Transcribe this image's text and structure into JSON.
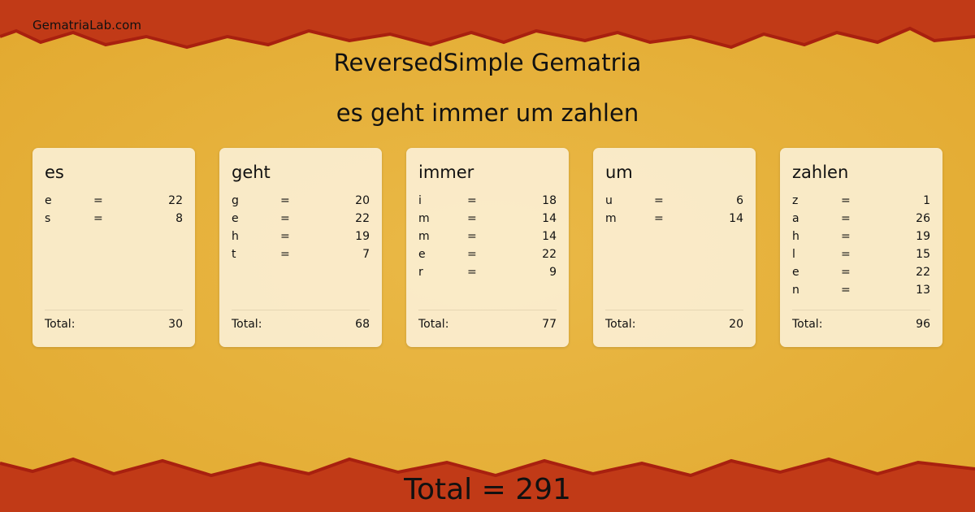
{
  "site": "GematriaLab.com",
  "title": "ReversedSimple Gematria",
  "phrase": "es geht immer um zahlen",
  "total_label": "Total:",
  "grand_total": "Total = 291",
  "colors": {
    "background": "#e7b23a",
    "border": "#c13a17",
    "card": "#fbefd2"
  },
  "words": [
    {
      "word": "es",
      "letters": [
        [
          "e",
          "=",
          "22"
        ],
        [
          "s",
          "=",
          "8"
        ]
      ],
      "total": "30"
    },
    {
      "word": "geht",
      "letters": [
        [
          "g",
          "=",
          "20"
        ],
        [
          "e",
          "=",
          "22"
        ],
        [
          "h",
          "=",
          "19"
        ],
        [
          "t",
          "=",
          "7"
        ]
      ],
      "total": "68"
    },
    {
      "word": "immer",
      "letters": [
        [
          "i",
          "=",
          "18"
        ],
        [
          "m",
          "=",
          "14"
        ],
        [
          "m",
          "=",
          "14"
        ],
        [
          "e",
          "=",
          "22"
        ],
        [
          "r",
          "=",
          "9"
        ]
      ],
      "total": "77"
    },
    {
      "word": "um",
      "letters": [
        [
          "u",
          "=",
          "6"
        ],
        [
          "m",
          "=",
          "14"
        ]
      ],
      "total": "20"
    },
    {
      "word": "zahlen",
      "letters": [
        [
          "z",
          "=",
          "1"
        ],
        [
          "a",
          "=",
          "26"
        ],
        [
          "h",
          "=",
          "19"
        ],
        [
          "l",
          "=",
          "15"
        ],
        [
          "e",
          "=",
          "22"
        ],
        [
          "n",
          "=",
          "13"
        ]
      ],
      "total": "96"
    }
  ]
}
